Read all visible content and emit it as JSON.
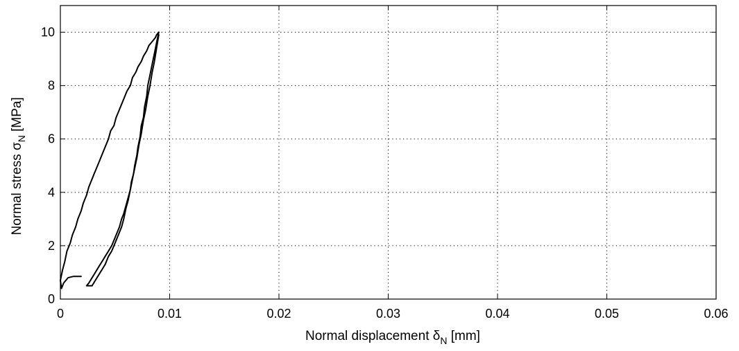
{
  "chart_data": {
    "type": "line",
    "title": "",
    "xlabel": {
      "main": "Normal displacement δ",
      "sub": "N",
      "unit": "[mm]"
    },
    "ylabel": {
      "main": "Normal stress σ",
      "sub": "N",
      "unit": "[MPa]"
    },
    "xlim": [
      0,
      0.06
    ],
    "ylim": [
      0,
      11
    ],
    "xticks": [
      0,
      0.01,
      0.02,
      0.03,
      0.04,
      0.05,
      0.06
    ],
    "xtick_labels": [
      "0",
      "0.01",
      "0.02",
      "0.03",
      "0.04",
      "0.05",
      "0.06"
    ],
    "yticks": [
      0,
      2,
      4,
      6,
      8,
      10
    ],
    "ytick_labels": [
      "0",
      "2",
      "4",
      "6",
      "8",
      "10"
    ],
    "grid": true,
    "grid_style": "dotted",
    "legend": false,
    "line_color": "#000000",
    "series": [
      {
        "x": [
          0.0019,
          0.0012,
          0.0007,
          0.0003,
          0.0001,
          0.0,
          0.0002,
          0.0004,
          0.0006,
          0.0009,
          0.0011,
          0.0014,
          0.0016,
          0.0019,
          0.0021,
          0.0024,
          0.0026,
          0.0029,
          0.0031,
          0.0034,
          0.0036,
          0.0039,
          0.0041,
          0.0044,
          0.0046,
          0.0049,
          0.0051,
          0.0054,
          0.0056,
          0.0059,
          0.0061,
          0.0064,
          0.0066,
          0.0069,
          0.0071,
          0.0074,
          0.0076,
          0.0079,
          0.0081,
          0.0083,
          0.0085,
          0.0087,
          0.0088,
          0.0089,
          0.009
        ],
        "y": [
          0.85,
          0.85,
          0.8,
          0.6,
          0.4,
          0.7,
          1.1,
          1.4,
          1.8,
          2.1,
          2.4,
          2.7,
          3.0,
          3.3,
          3.6,
          3.9,
          4.2,
          4.5,
          4.7,
          5.0,
          5.2,
          5.5,
          5.7,
          6.0,
          6.3,
          6.5,
          6.8,
          7.1,
          7.3,
          7.6,
          7.8,
          8.0,
          8.3,
          8.5,
          8.7,
          8.9,
          9.1,
          9.3,
          9.5,
          9.6,
          9.7,
          9.8,
          9.9,
          9.95,
          10.0
        ]
      },
      {
        "x": [
          0.009,
          0.0088,
          0.0086,
          0.0084,
          0.0082,
          0.008,
          0.0079,
          0.0077,
          0.0076,
          0.0074,
          0.0073,
          0.0071,
          0.007,
          0.0068,
          0.0067,
          0.0065,
          0.0064,
          0.0062,
          0.006,
          0.0058,
          0.0056,
          0.0054,
          0.0052,
          0.005,
          0.0047,
          0.0044,
          0.0041,
          0.0038,
          0.0035,
          0.0032,
          0.0029,
          0.0026,
          0.0024,
          0.0026,
          0.0029
        ],
        "y": [
          10.0,
          9.6,
          9.2,
          8.8,
          8.4,
          8.0,
          7.6,
          7.2,
          6.8,
          6.5,
          6.1,
          5.7,
          5.4,
          5.0,
          4.7,
          4.4,
          4.1,
          3.8,
          3.5,
          3.2,
          3.0,
          2.7,
          2.5,
          2.3,
          2.0,
          1.8,
          1.6,
          1.4,
          1.2,
          1.0,
          0.8,
          0.6,
          0.5,
          0.5,
          0.5
        ]
      },
      {
        "x": [
          0.0029,
          0.0032,
          0.0035,
          0.0038,
          0.0041,
          0.0044,
          0.0047,
          0.005,
          0.0053,
          0.0056,
          0.0058,
          0.006,
          0.0062,
          0.0064,
          0.0066,
          0.0068,
          0.007,
          0.0072,
          0.0074,
          0.0076,
          0.0078,
          0.008,
          0.0082,
          0.0084,
          0.0086,
          0.0088,
          0.009
        ],
        "y": [
          0.5,
          0.7,
          0.9,
          1.1,
          1.3,
          1.6,
          1.8,
          2.1,
          2.4,
          2.7,
          3.0,
          3.4,
          3.7,
          4.1,
          4.5,
          4.9,
          5.3,
          5.8,
          6.2,
          6.7,
          7.1,
          7.6,
          8.0,
          8.5,
          8.9,
          9.4,
          9.9
        ]
      }
    ]
  }
}
